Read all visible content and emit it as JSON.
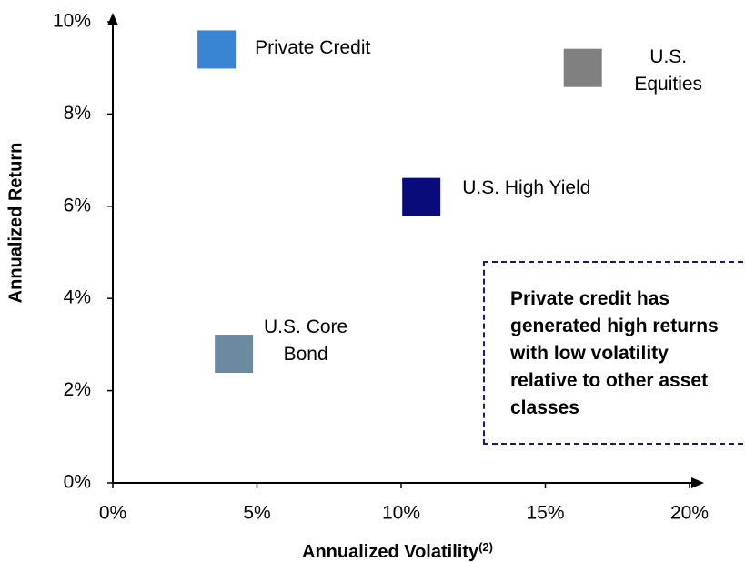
{
  "chart_data": {
    "type": "scatter",
    "xlabel": "Annualized Volatility",
    "xlabel_superscript": "(2)",
    "ylabel": "Annualized Return",
    "annotation": "Private credit has generated high returns with low volatility relative to other asset classes",
    "series": [
      {
        "name": "Private Credit",
        "color": "#3a84d4",
        "x": [
          3.6
        ],
        "values": [
          9.4
        ]
      },
      {
        "name": "U.S. Equities",
        "color": "#808080",
        "x": [
          16.3
        ],
        "values": [
          9.0
        ]
      },
      {
        "name": "U.S. High Yield",
        "color": "#0a0a7c",
        "x": [
          10.7
        ],
        "values": [
          6.2
        ]
      },
      {
        "name": "U.S. Core Bond",
        "color": "#6b8aa0",
        "x": [
          4.2
        ],
        "values": [
          2.8
        ]
      }
    ],
    "xlim": [
      0,
      20
    ],
    "xticks": [
      {
        "value": 0,
        "label": "0%"
      },
      {
        "value": 5,
        "label": "5%"
      },
      {
        "value": 10,
        "label": "10%"
      },
      {
        "value": 15,
        "label": "15%"
      },
      {
        "value": 20,
        "label": "20%"
      }
    ],
    "ylim": [
      0,
      10
    ],
    "yticks": [
      {
        "value": 0,
        "label": "0%"
      },
      {
        "value": 2,
        "label": "2%"
      },
      {
        "value": 4,
        "label": "4%"
      },
      {
        "value": 6,
        "label": "6%"
      },
      {
        "value": 8,
        "label": "8%"
      },
      {
        "value": 10,
        "label": "10%"
      }
    ]
  }
}
